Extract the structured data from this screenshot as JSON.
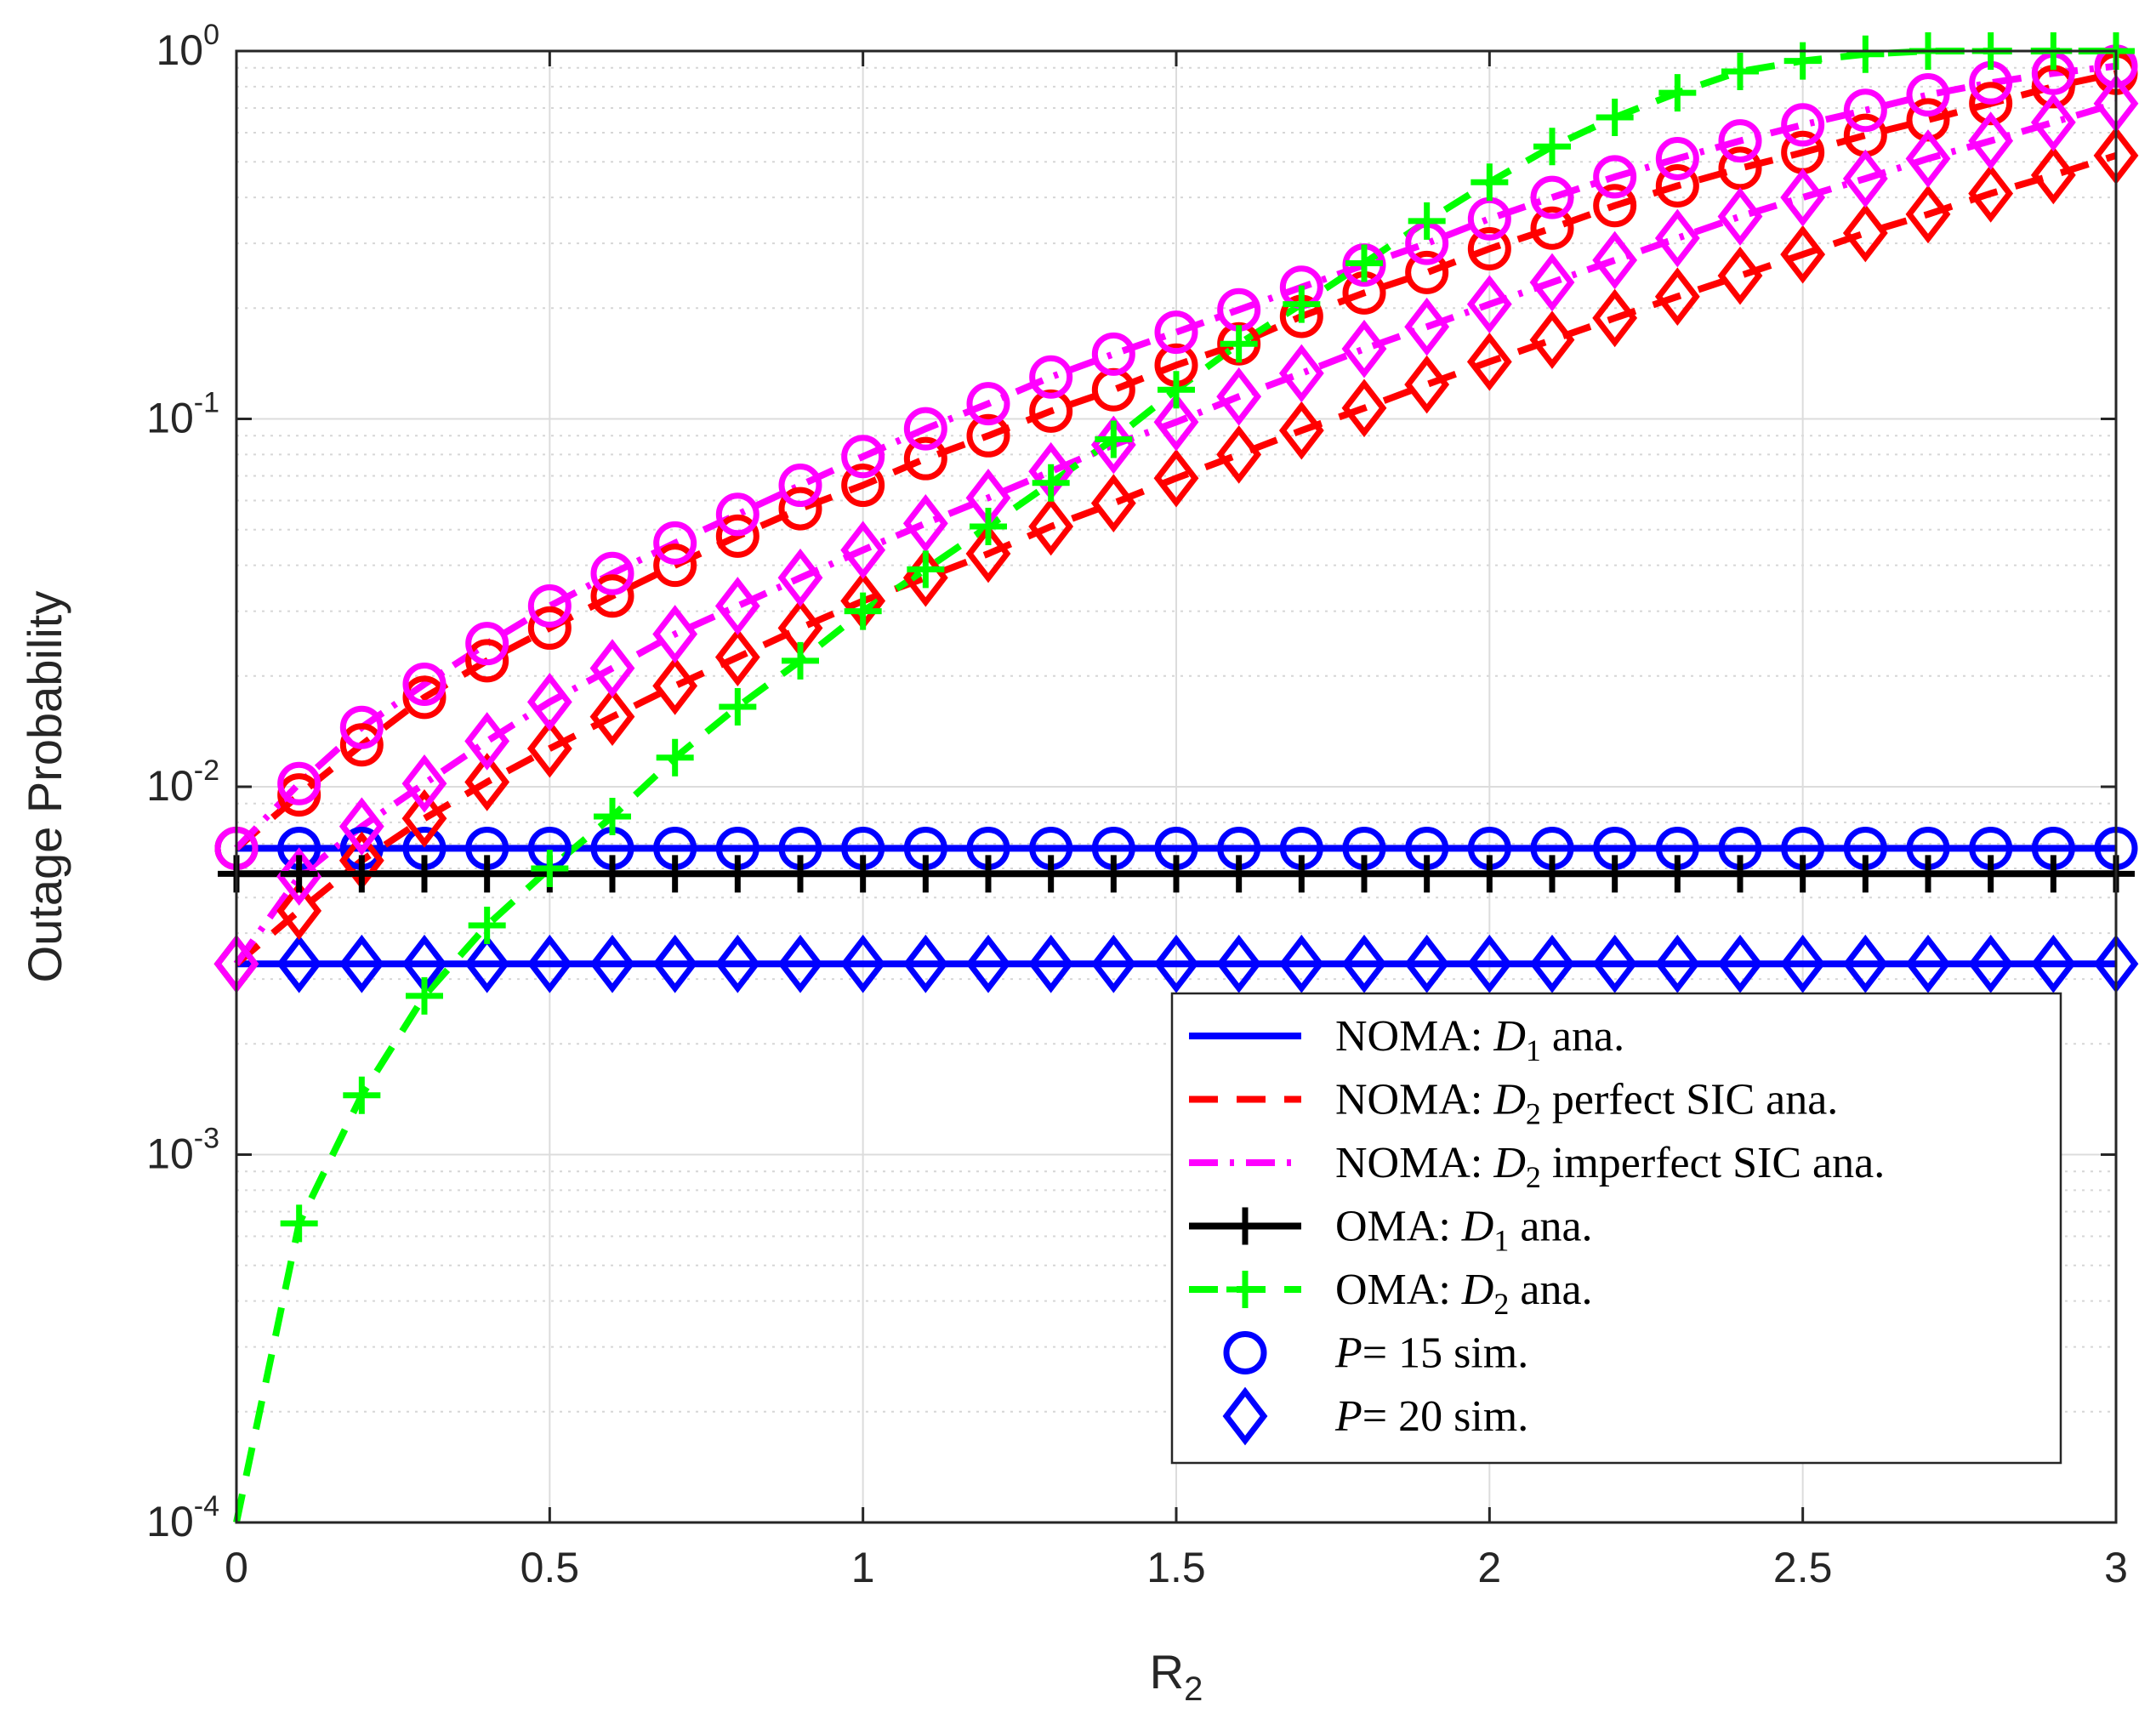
{
  "chart_data": {
    "type": "line",
    "title": "",
    "xlabel": "R",
    "xlabel_sub": "2",
    "ylabel": "Outage Probability",
    "xlim": [
      0,
      3
    ],
    "ylim": [
      0.0001,
      1
    ],
    "yscale": "log",
    "grid": true,
    "legend_position": "lower-right",
    "x_ticks": [
      "0",
      "0.5",
      "1",
      "1.5",
      "2",
      "2.5",
      "3"
    ],
    "y_ticks": [
      {
        "base": "10",
        "exp": "-4"
      },
      {
        "base": "10",
        "exp": "-3"
      },
      {
        "base": "10",
        "exp": "-2"
      },
      {
        "base": "10",
        "exp": "-1"
      },
      {
        "base": "10",
        "exp": "0"
      }
    ],
    "x": [
      0,
      0.1,
      0.2,
      0.3,
      0.4,
      0.5,
      0.6,
      0.7,
      0.8,
      0.9,
      1.0,
      1.1,
      1.2,
      1.3,
      1.4,
      1.5,
      1.6,
      1.7,
      1.8,
      1.9,
      2.0,
      2.1,
      2.2,
      2.3,
      2.4,
      2.5,
      2.6,
      2.7,
      2.8,
      2.9,
      3.0
    ],
    "series": [
      {
        "name": "NOMA D1 P=15",
        "color": "#0000ff",
        "dash": "solid",
        "marker": "circle",
        "values": [
          0.0068,
          0.0068,
          0.0068,
          0.0068,
          0.0068,
          0.0068,
          0.0068,
          0.0068,
          0.0068,
          0.0068,
          0.0068,
          0.0068,
          0.0068,
          0.0068,
          0.0068,
          0.0068,
          0.0068,
          0.0068,
          0.0068,
          0.0068,
          0.0068,
          0.0068,
          0.0068,
          0.0068,
          0.0068,
          0.0068,
          0.0068,
          0.0068,
          0.0068,
          0.0068,
          0.0068
        ]
      },
      {
        "name": "NOMA D1 P=20",
        "color": "#0000ff",
        "dash": "solid",
        "marker": "diamond",
        "values": [
          0.0033,
          0.0033,
          0.0033,
          0.0033,
          0.0033,
          0.0033,
          0.0033,
          0.0033,
          0.0033,
          0.0033,
          0.0033,
          0.0033,
          0.0033,
          0.0033,
          0.0033,
          0.0033,
          0.0033,
          0.0033,
          0.0033,
          0.0033,
          0.0033,
          0.0033,
          0.0033,
          0.0033,
          0.0033,
          0.0033,
          0.0033,
          0.0033,
          0.0033,
          0.0033,
          0.0033
        ]
      },
      {
        "name": "NOMA D2 perfect SIC P=15",
        "color": "#ff0000",
        "dash": "dashed",
        "marker": "circle",
        "values": [
          0.0068,
          0.0095,
          0.013,
          0.0175,
          0.022,
          0.027,
          0.033,
          0.04,
          0.048,
          0.057,
          0.066,
          0.078,
          0.09,
          0.105,
          0.12,
          0.14,
          0.16,
          0.19,
          0.22,
          0.25,
          0.29,
          0.33,
          0.38,
          0.43,
          0.48,
          0.53,
          0.59,
          0.65,
          0.72,
          0.8,
          0.87
        ]
      },
      {
        "name": "NOMA D2 perfect SIC P=20",
        "color": "#ff0000",
        "dash": "dashed",
        "marker": "diamond",
        "values": [
          0.0033,
          0.0046,
          0.0063,
          0.0082,
          0.0103,
          0.0127,
          0.0155,
          0.0188,
          0.0225,
          0.027,
          0.032,
          0.037,
          0.043,
          0.051,
          0.059,
          0.069,
          0.08,
          0.093,
          0.107,
          0.124,
          0.143,
          0.164,
          0.188,
          0.215,
          0.245,
          0.28,
          0.32,
          0.36,
          0.41,
          0.46,
          0.52
        ]
      },
      {
        "name": "NOMA D2 imperfect SIC P=15",
        "color": "#ff00ff",
        "dash": "dashdot",
        "marker": "circle",
        "values": [
          0.0068,
          0.0102,
          0.0145,
          0.019,
          0.0245,
          0.031,
          0.038,
          0.046,
          0.055,
          0.066,
          0.079,
          0.094,
          0.11,
          0.13,
          0.15,
          0.172,
          0.198,
          0.228,
          0.262,
          0.3,
          0.35,
          0.4,
          0.455,
          0.51,
          0.57,
          0.63,
          0.69,
          0.76,
          0.82,
          0.87,
          0.91
        ]
      },
      {
        "name": "NOMA D2 imperfect SIC P=20",
        "color": "#ff00ff",
        "dash": "dashdot",
        "marker": "diamond",
        "values": [
          0.0033,
          0.0057,
          0.0078,
          0.0102,
          0.0133,
          0.017,
          0.021,
          0.026,
          0.031,
          0.037,
          0.044,
          0.052,
          0.061,
          0.072,
          0.085,
          0.098,
          0.115,
          0.133,
          0.155,
          0.178,
          0.205,
          0.235,
          0.27,
          0.31,
          0.355,
          0.4,
          0.45,
          0.51,
          0.57,
          0.64,
          0.72
        ]
      },
      {
        "name": "OMA D1",
        "color": "#000000",
        "dash": "solid",
        "marker": "plus",
        "values": [
          0.0058,
          0.0058,
          0.0058,
          0.0058,
          0.0058,
          0.0058,
          0.0058,
          0.0058,
          0.0058,
          0.0058,
          0.0058,
          0.0058,
          0.0058,
          0.0058,
          0.0058,
          0.0058,
          0.0058,
          0.0058,
          0.0058,
          0.0058,
          0.0058,
          0.0058,
          0.0058,
          0.0058,
          0.0058,
          0.0058,
          0.0058,
          0.0058,
          0.0058,
          0.0058,
          0.0058
        ]
      },
      {
        "name": "OMA D2",
        "color": "#00ff00",
        "dash": "dashed",
        "marker": "plus",
        "values": [
          0.0001,
          0.00065,
          0.00145,
          0.0027,
          0.0042,
          0.006,
          0.0083,
          0.012,
          0.0165,
          0.022,
          0.03,
          0.039,
          0.051,
          0.067,
          0.088,
          0.12,
          0.16,
          0.205,
          0.265,
          0.345,
          0.44,
          0.55,
          0.66,
          0.77,
          0.88,
          0.94,
          0.98,
          1.0,
          1.0,
          1.0,
          1.0
        ]
      }
    ],
    "legend": [
      {
        "prefix": "NOMA: ",
        "var": "D",
        "sub": "1",
        "suffix": " ana.",
        "color": "#0000ff",
        "dash": "solid",
        "marker": "none"
      },
      {
        "prefix": "NOMA: ",
        "var": "D",
        "sub": "2",
        "suffix": " perfect SIC ana.",
        "color": "#ff0000",
        "dash": "dashed",
        "marker": "none"
      },
      {
        "prefix": "NOMA: ",
        "var": "D",
        "sub": "2",
        "suffix": " imperfect SIC ana.",
        "color": "#ff00ff",
        "dash": "dashdot",
        "marker": "none"
      },
      {
        "prefix": "OMA: ",
        "var": "D",
        "sub": "1",
        "suffix": " ana.",
        "color": "#000000",
        "dash": "solid",
        "marker": "plus"
      },
      {
        "prefix": "OMA: ",
        "var": "D",
        "sub": "2",
        "suffix": " ana.",
        "color": "#00ff00",
        "dash": "dashed",
        "marker": "plus"
      },
      {
        "prefix": "",
        "var": "P",
        "sub": "",
        "suffix": "= 15 sim.",
        "color": "#0000ff",
        "dash": "none",
        "marker": "circle"
      },
      {
        "prefix": "",
        "var": "P",
        "sub": "",
        "suffix": "= 20 sim.",
        "color": "#0000ff",
        "dash": "none",
        "marker": "diamond"
      }
    ]
  }
}
